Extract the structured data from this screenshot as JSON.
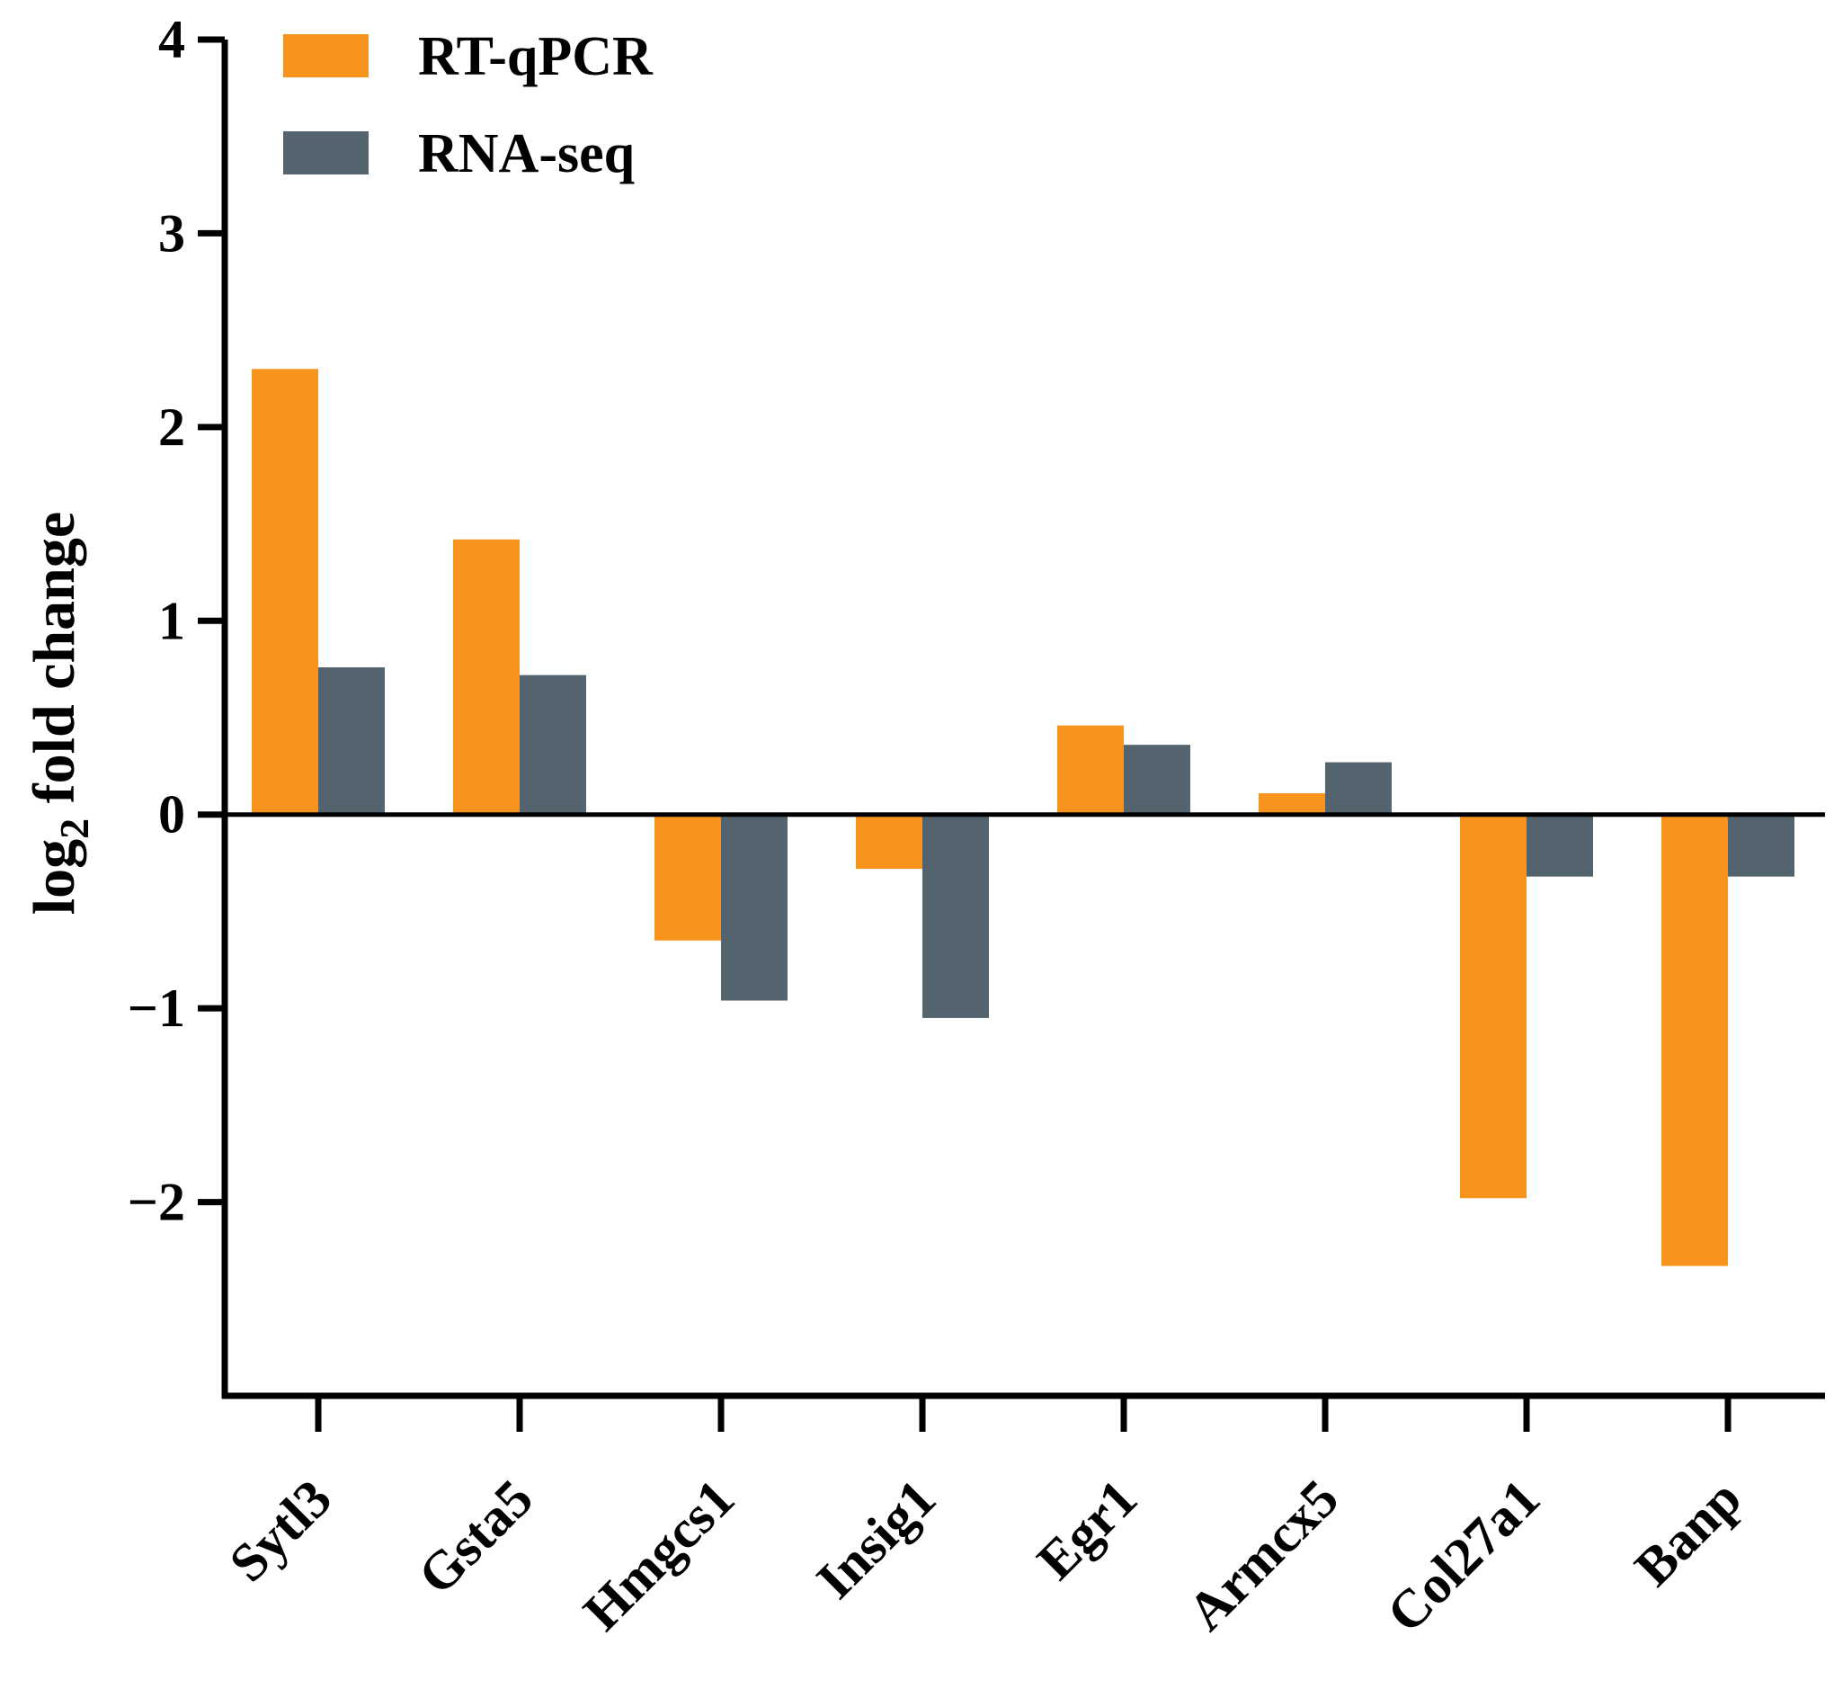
{
  "chart_data": {
    "type": "bar",
    "title": "",
    "xlabel": "",
    "ylabel": "log2 fold change",
    "ylabel_parts": {
      "main": "log",
      "subscript": "2",
      "rest": " fold change"
    },
    "ylim": [
      -3,
      4
    ],
    "yticks": [
      4,
      3,
      2,
      1,
      0,
      -1,
      -2
    ],
    "ytick_labels": [
      "4",
      "3",
      "2",
      "1",
      "0",
      "−1",
      "−2"
    ],
    "categories": [
      "Sytl3",
      "Gsta5",
      "Hmgcs1",
      "Insig1",
      "Egr1",
      "Armcx5",
      "Col27a1",
      "Banp"
    ],
    "series": [
      {
        "name": "RT-qPCR",
        "color": "#F7941D",
        "values": [
          2.3,
          1.42,
          -0.65,
          -0.28,
          0.46,
          0.11,
          -1.98,
          -2.33
        ]
      },
      {
        "name": "RNA-seq",
        "color": "#53646F",
        "values": [
          0.76,
          0.72,
          -0.96,
          -1.05,
          0.36,
          0.27,
          -0.32,
          -0.32
        ]
      }
    ],
    "legend_position": "top-left",
    "grid": false
  }
}
